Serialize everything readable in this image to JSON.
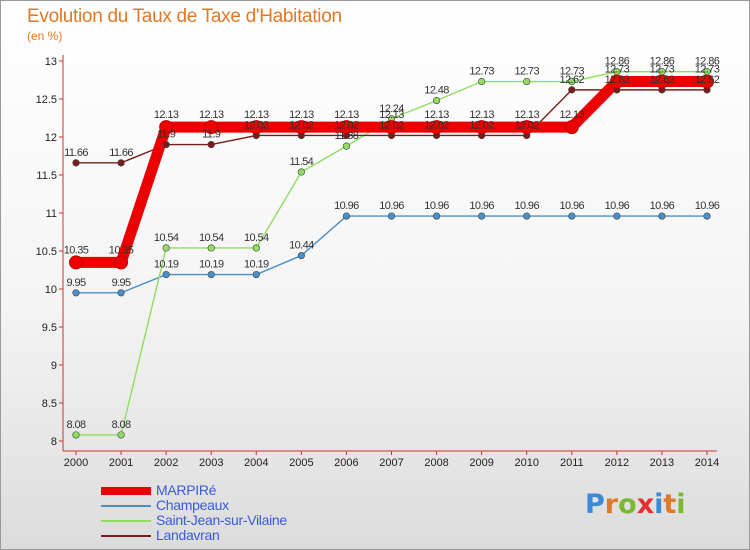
{
  "header": {
    "title": "Evolution du Taux de Taxe d'Habitation",
    "subtitle": "(en %)"
  },
  "logo": {
    "text": "Proxiti",
    "letters": [
      "P",
      "r",
      "o",
      "x",
      "i",
      "t",
      "i"
    ],
    "colors": [
      "#3a8ad8",
      "#e07828",
      "#7ab830",
      "#e83030",
      "#3a8ad8",
      "#e07828",
      "#7ab830"
    ]
  },
  "chart_data": {
    "type": "line",
    "title": "Evolution du Taux de Taxe d'Habitation",
    "subtitle": "(en %)",
    "xlabel": "",
    "ylabel": "(en %)",
    "ylim": [
      8,
      13
    ],
    "yticks": [
      "8",
      "8.5",
      "9",
      "9.5",
      "10",
      "10.5",
      "11",
      "11.5",
      "12",
      "12.5",
      "13"
    ],
    "x": [
      "2000",
      "2001",
      "2002",
      "2003",
      "2004",
      "2005",
      "2006",
      "2007",
      "2008",
      "2009",
      "2010",
      "2011",
      "2012",
      "2013",
      "2014"
    ],
    "grid": false,
    "legend": "bottom-left",
    "series": [
      {
        "name": "MARPIRé",
        "color": "#ee0000",
        "values": [
          10.35,
          10.35,
          12.13,
          12.13,
          12.13,
          12.13,
          12.13,
          12.13,
          12.13,
          12.13,
          12.13,
          12.13,
          12.73,
          12.73,
          12.73
        ],
        "labels": [
          "10.35",
          "10.35",
          "12.13",
          "12.13",
          "12.13",
          "12.13",
          "12.13",
          "12.13",
          "12.13",
          "12.13",
          "12.13",
          "12.13",
          "12.73",
          "12.73",
          "12.73"
        ]
      },
      {
        "name": "Champeaux",
        "color": "#4a90c8",
        "values": [
          9.95,
          9.95,
          10.19,
          10.19,
          10.19,
          10.44,
          10.96,
          10.96,
          10.96,
          10.96,
          10.96,
          10.96,
          10.96,
          10.96,
          10.96
        ],
        "labels": [
          "9.95",
          "9.95",
          "10.19",
          "10.19",
          "10.19",
          "10.44",
          "10.96",
          "10.96",
          "10.96",
          "10.96",
          "10.96",
          "10.96",
          "10.96",
          "10.96",
          "10.96"
        ]
      },
      {
        "name": "Saint-Jean-sur-Vilaine",
        "color": "#90dd60",
        "values": [
          8.08,
          8.08,
          10.54,
          10.54,
          10.54,
          11.54,
          11.88,
          12.24,
          12.48,
          12.73,
          12.73,
          12.73,
          12.86,
          12.86,
          12.86
        ],
        "labels": [
          "8.08",
          "8.08",
          "10.54",
          "10.54",
          "10.54",
          "11.54",
          "11.88",
          "12.24",
          "12.48",
          "12.73",
          "12.73",
          "12.73",
          "12.86",
          "12.86",
          "12.86"
        ]
      },
      {
        "name": "Landavran",
        "color": "#7a1c1c",
        "values": [
          11.66,
          11.66,
          11.9,
          11.9,
          12.02,
          12.02,
          12.02,
          12.02,
          12.02,
          12.02,
          12.02,
          12.62,
          12.62,
          12.62,
          12.62
        ],
        "labels": [
          "11.66",
          "11.66",
          "11.9",
          "11.9",
          "12.02",
          "12.02",
          "12.02",
          "12.02",
          "12.02",
          "12.02",
          "12.02",
          "12.62",
          "12.62",
          "12.62",
          "12.62"
        ]
      }
    ]
  }
}
